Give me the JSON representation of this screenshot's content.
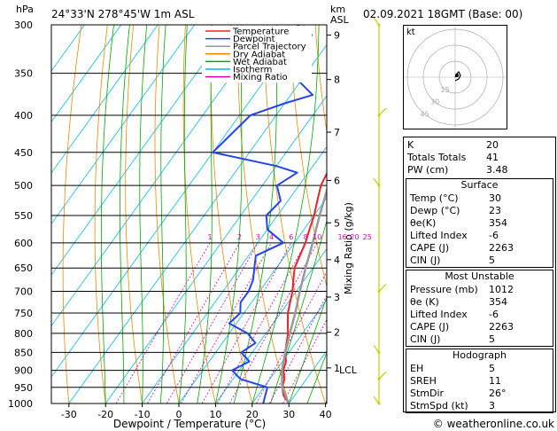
{
  "header": {
    "hpa_label": "hPa",
    "location": "24°33'N  278°45'W  1m  ASL",
    "km_label": "km",
    "asl_label": "ASL",
    "datetime": "02.09.2021  18GMT  (Base: 00)",
    "copyright": "© weatheronline.co.uk"
  },
  "axes": {
    "xlabel": "Dewpoint / Temperature (°C)",
    "ylabel_right": "Mixing Ratio (g/kg)",
    "x_ticks": [
      -30,
      -20,
      -10,
      0,
      10,
      20,
      30,
      40
    ],
    "pressure_levels": [
      300,
      350,
      400,
      450,
      500,
      550,
      600,
      650,
      700,
      750,
      800,
      850,
      900,
      950,
      1000
    ],
    "km_ticks": [
      {
        "km": "9",
        "p": 310
      },
      {
        "km": "8",
        "p": 357
      },
      {
        "km": "7",
        "p": 422
      },
      {
        "km": "6",
        "p": 492
      },
      {
        "km": "5",
        "p": 563
      },
      {
        "km": "4",
        "p": 633
      },
      {
        "km": "3",
        "p": 713
      },
      {
        "km": "2",
        "p": 797
      },
      {
        "km": "1",
        "p": 893
      }
    ],
    "lcl_label": "LCL",
    "lcl_p": 898,
    "mixing_ratio_labels": [
      "1",
      "2",
      "3",
      "4",
      "6",
      "8",
      "10",
      "16",
      "20",
      "25"
    ],
    "mixing_ratio_values": [
      1,
      2,
      3,
      4,
      6,
      8,
      10,
      16,
      20,
      25
    ]
  },
  "legend": {
    "items": [
      {
        "label": "Temperature",
        "color": "#ee2222"
      },
      {
        "label": "Dewpoint",
        "color": "#2244ee"
      },
      {
        "label": "Parcel Trajectory",
        "color": "#999999"
      },
      {
        "label": "Dry Adiabat",
        "color": "#ee8800"
      },
      {
        "label": "Wet Adiabat",
        "color": "#00aa00"
      },
      {
        "label": "Isotherm",
        "color": "#00bbee"
      },
      {
        "label": "Mixing Ratio",
        "color": "#dd00aa"
      }
    ]
  },
  "chart_data": {
    "type": "line",
    "title": "Skew-T log-P diagram",
    "xlabel": "Dewpoint / Temperature (°C)",
    "ylabel": "hPa",
    "xlim": [
      -35,
      40
    ],
    "ylim": [
      1000,
      300
    ],
    "series": [
      {
        "name": "Temperature",
        "color": "#ee2222",
        "points": [
          [
            1000,
            30
          ],
          [
            975,
            27
          ],
          [
            950,
            25
          ],
          [
            925,
            24
          ],
          [
            900,
            22
          ],
          [
            875,
            21
          ],
          [
            850,
            19
          ],
          [
            825,
            17.5
          ],
          [
            800,
            16
          ],
          [
            775,
            14
          ],
          [
            750,
            12
          ],
          [
            725,
            10.5
          ],
          [
            700,
            9
          ],
          [
            675,
            7
          ],
          [
            650,
            5
          ],
          [
            625,
            4
          ],
          [
            600,
            3
          ],
          [
            575,
            1.5
          ],
          [
            550,
            0
          ],
          [
            525,
            -2
          ],
          [
            500,
            -4
          ],
          [
            475,
            -5
          ],
          [
            450,
            -7
          ],
          [
            425,
            -9.5
          ],
          [
            400,
            -12
          ],
          [
            375,
            -15
          ],
          [
            350,
            -18
          ],
          [
            325,
            -22
          ],
          [
            300,
            -25
          ]
        ]
      },
      {
        "name": "Dewpoint",
        "color": "#2244ee",
        "points": [
          [
            1000,
            23
          ],
          [
            975,
            22
          ],
          [
            950,
            21
          ],
          [
            925,
            12
          ],
          [
            900,
            8
          ],
          [
            875,
            11
          ],
          [
            850,
            7
          ],
          [
            825,
            9
          ],
          [
            800,
            5
          ],
          [
            775,
            -2
          ],
          [
            750,
            -1
          ],
          [
            725,
            -3
          ],
          [
            700,
            -3
          ],
          [
            675,
            -4
          ],
          [
            650,
            -6
          ],
          [
            625,
            -8
          ],
          [
            600,
            -3
          ],
          [
            575,
            -10
          ],
          [
            550,
            -13
          ],
          [
            525,
            -12
          ],
          [
            500,
            -16
          ],
          [
            480,
            -13
          ],
          [
            470,
            -20
          ],
          [
            450,
            -40
          ],
          [
            400,
            -37
          ],
          [
            385,
            -30
          ],
          [
            375,
            -24
          ],
          [
            360,
            -30
          ],
          [
            350,
            -41
          ],
          [
            335,
            -38
          ],
          [
            320,
            -36
          ],
          [
            310,
            -36
          ],
          [
            300,
            -42
          ]
        ]
      },
      {
        "name": "Parcel Trajectory",
        "color": "#999999",
        "points": [
          [
            1000,
            30
          ],
          [
            950,
            25
          ],
          [
            898,
            21.5
          ],
          [
            850,
            19
          ],
          [
            800,
            16.5
          ],
          [
            750,
            14
          ],
          [
            700,
            11
          ],
          [
            650,
            8
          ],
          [
            600,
            5
          ],
          [
            550,
            1.5
          ],
          [
            500,
            -2
          ],
          [
            450,
            -6
          ],
          [
            400,
            -10.5
          ],
          [
            350,
            -16
          ],
          [
            300,
            -22.5
          ]
        ]
      }
    ]
  },
  "hodograph": {
    "unit": "kt",
    "ring_labels": [
      "15",
      "30",
      "45"
    ],
    "trace_points_kt": [
      [
        0,
        0
      ],
      [
        1,
        2
      ],
      [
        2,
        3
      ],
      [
        3,
        1
      ],
      [
        2,
        -1
      ],
      [
        0,
        -2
      ]
    ]
  },
  "wind_barbs": {
    "color": "#cccc00",
    "pressures": [
      300,
      400,
      500,
      700,
      850,
      925,
      1000
    ]
  },
  "indices": [
    {
      "label": "K",
      "value": "20"
    },
    {
      "label": "Totals Totals",
      "value": "41"
    },
    {
      "label": "PW (cm)",
      "value": "3.48"
    }
  ],
  "surface": {
    "title": "Surface",
    "rows": [
      {
        "label": "Temp (°C)",
        "value": "30"
      },
      {
        "label": "Dewp (°C)",
        "value": "23"
      },
      {
        "label": "θe(K)",
        "value": "354"
      },
      {
        "label": "Lifted Index",
        "value": "-6"
      },
      {
        "label": "CAPE (J)",
        "value": "2263"
      },
      {
        "label": "CIN (J)",
        "value": "5"
      }
    ]
  },
  "most_unstable": {
    "title": "Most Unstable",
    "rows": [
      {
        "label": "Pressure (mb)",
        "value": "1012"
      },
      {
        "label": "θe (K)",
        "value": "354"
      },
      {
        "label": "Lifted Index",
        "value": "-6"
      },
      {
        "label": "CAPE (J)",
        "value": "2263"
      },
      {
        "label": "CIN (J)",
        "value": "5"
      }
    ]
  },
  "hodograph_table": {
    "title": "Hodograph",
    "rows": [
      {
        "label": "EH",
        "value": "5"
      },
      {
        "label": "SREH",
        "value": "11"
      },
      {
        "label": "StmDir",
        "value": "26°"
      },
      {
        "label": "StmSpd (kt)",
        "value": "3"
      }
    ]
  }
}
